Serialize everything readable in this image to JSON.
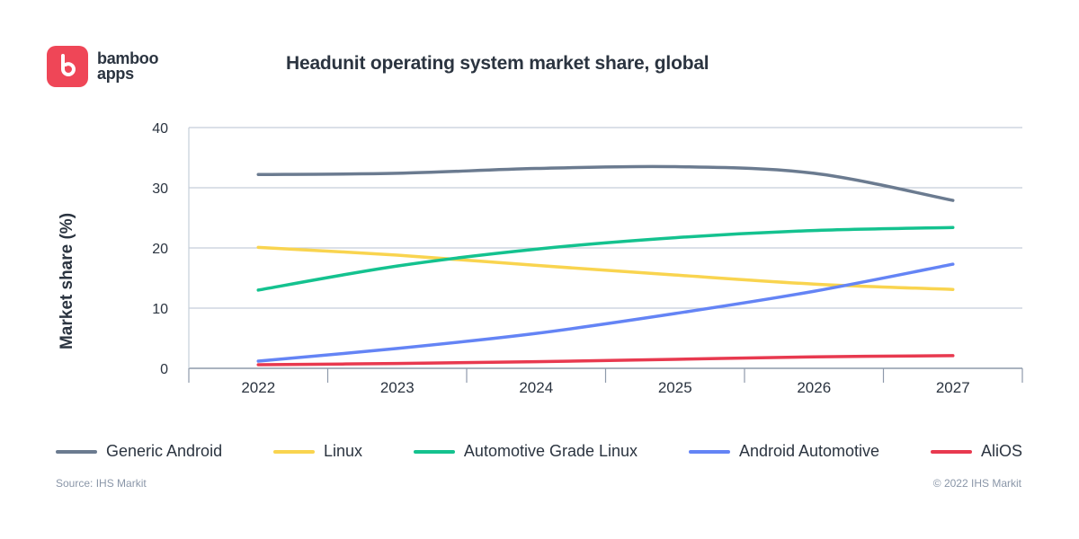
{
  "brand": {
    "line1": "bamboo",
    "line2": "apps",
    "color": "#ef4657"
  },
  "chart_data": {
    "type": "line",
    "title": "Headunit operating system market share, global",
    "xlabel": "",
    "ylabel": "Market share (%)",
    "categories": [
      "2022",
      "2023",
      "2024",
      "2025",
      "2026",
      "2027"
    ],
    "ylim": [
      0,
      40
    ],
    "yticks": [
      "0",
      "10",
      "20",
      "30",
      "40"
    ],
    "grid": true,
    "legend_position": "bottom",
    "series": [
      {
        "name": "Generic Android",
        "color": "#6b7b90",
        "values": [
          32.2,
          32.4,
          33.2,
          33.5,
          32.4,
          27.9
        ]
      },
      {
        "name": "Linux",
        "color": "#f9d44f",
        "values": [
          20.1,
          18.8,
          17.1,
          15.5,
          14.0,
          13.1
        ]
      },
      {
        "name": "Automotive Grade Linux",
        "color": "#14c28f",
        "values": [
          13.0,
          17.0,
          19.8,
          21.7,
          22.9,
          23.4
        ]
      },
      {
        "name": "Android Automotive",
        "color": "#6484f5",
        "values": [
          1.2,
          3.3,
          5.8,
          9.1,
          12.8,
          17.3
        ]
      },
      {
        "name": "AliOS",
        "color": "#e8394f",
        "values": [
          0.6,
          0.8,
          1.1,
          1.5,
          1.9,
          2.1
        ]
      }
    ]
  },
  "footer": {
    "source": "Source: IHS Markit",
    "copyright": "© 2022 IHS Markit"
  }
}
